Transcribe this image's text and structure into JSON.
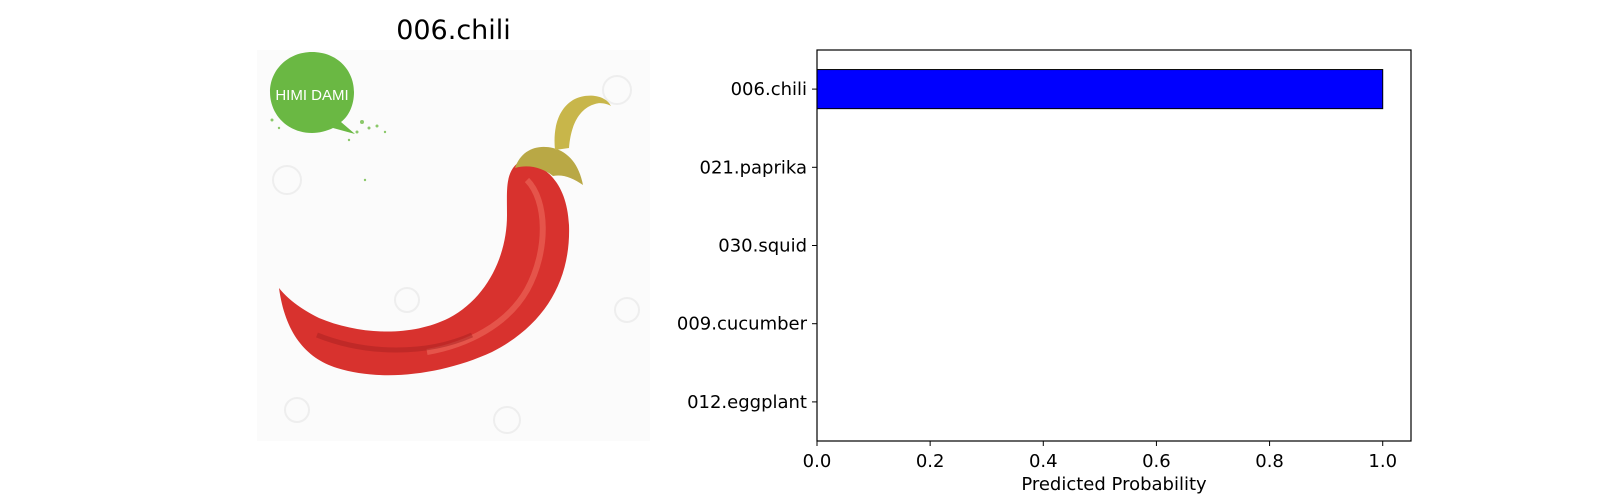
{
  "image_panel": {
    "title": "006.chili",
    "badge_text": "HIMI DAMI",
    "colors": {
      "badge": "#6ab843",
      "pepper": "#d8322e",
      "stem": "#b9a845"
    }
  },
  "chart_data": {
    "type": "bar",
    "orientation": "horizontal",
    "categories": [
      "006.chili",
      "021.paprika",
      "030.squid",
      "009.cucumber",
      "012.eggplant"
    ],
    "values": [
      1.0,
      0.0,
      0.0,
      0.0,
      0.0
    ],
    "xlabel": "Predicted Probability",
    "ylabel": "",
    "xlim": [
      0,
      1.05
    ],
    "xticks": [
      0.0,
      0.2,
      0.4,
      0.6,
      0.8,
      1.0
    ],
    "xtick_labels": [
      "0.0",
      "0.2",
      "0.4",
      "0.6",
      "0.8",
      "1.0"
    ],
    "bar_color": "#0000ff",
    "grid": false
  }
}
